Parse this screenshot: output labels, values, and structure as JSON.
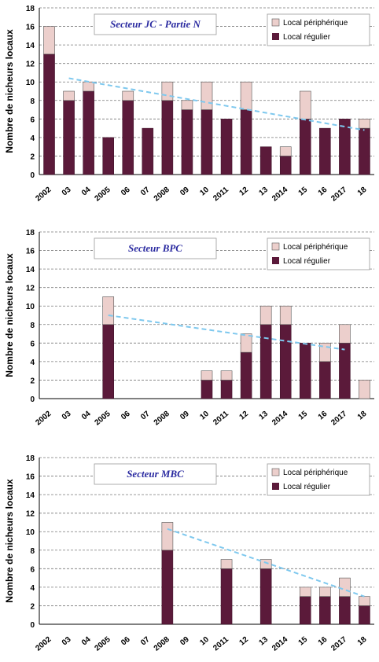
{
  "colors": {
    "regular": "#5b1a3a",
    "peripheral": "#eccfcc",
    "trend": "#7ec8ee",
    "grid": "#777777"
  },
  "chart_data": [
    {
      "type": "bar",
      "title": "Secteur JC  -  Partie N",
      "ylabel": "Nombre de nicheurs locaux",
      "ylim": [
        0,
        18
      ],
      "yticks": [
        0,
        2,
        4,
        6,
        8,
        10,
        12,
        14,
        16,
        18
      ],
      "categories": [
        "2002",
        "03",
        "04",
        "2005",
        "06",
        "07",
        "2008",
        "09",
        "10",
        "2011",
        "12",
        "13",
        "2014",
        "15",
        "16",
        "2017",
        "18"
      ],
      "series": [
        {
          "name": "Local régulier",
          "values": [
            13,
            8,
            9,
            4,
            8,
            5,
            8,
            7,
            7,
            6,
            7,
            3,
            2,
            6,
            5,
            6,
            5
          ]
        },
        {
          "name": "Local périphérique",
          "values": [
            3,
            1,
            1,
            0,
            1,
            0,
            2,
            1,
            3,
            0,
            3,
            0,
            1,
            3,
            0,
            0,
            1
          ]
        }
      ],
      "trend": {
        "x_from": "03",
        "y_from": 10.4,
        "x_to": "18",
        "y_to": 4.8
      },
      "legend_position": "top-right",
      "grid": true
    },
    {
      "type": "bar",
      "title": "Secteur BPC",
      "ylabel": "Nombre de nicheurs locaux",
      "ylim": [
        0,
        18
      ],
      "yticks": [
        0,
        2,
        4,
        6,
        8,
        10,
        12,
        14,
        16,
        18
      ],
      "categories": [
        "2002",
        "03",
        "04",
        "2005",
        "06",
        "07",
        "2008",
        "09",
        "10",
        "2011",
        "12",
        "13",
        "2014",
        "15",
        "16",
        "2017",
        "18"
      ],
      "series": [
        {
          "name": "Local régulier",
          "values": [
            0,
            0,
            0,
            8,
            0,
            0,
            0,
            0,
            2,
            2,
            5,
            8,
            8,
            6,
            4,
            6,
            0
          ]
        },
        {
          "name": "Local périphérique",
          "values": [
            0,
            0,
            0,
            3,
            0,
            0,
            0,
            0,
            1,
            1,
            2,
            2,
            2,
            0,
            2,
            2,
            2
          ]
        }
      ],
      "trend": {
        "x_from": "2005",
        "y_from": 9.0,
        "x_to": "2017",
        "y_to": 5.3
      },
      "legend_position": "top-right",
      "grid": true
    },
    {
      "type": "bar",
      "title": "Secteur MBC",
      "ylabel": "Nombre de nicheurs locaux",
      "ylim": [
        0,
        18
      ],
      "yticks": [
        0,
        2,
        4,
        6,
        8,
        10,
        12,
        14,
        16,
        18
      ],
      "categories": [
        "2002",
        "03",
        "04",
        "2005",
        "06",
        "07",
        "2008",
        "09",
        "10",
        "2011",
        "12",
        "13",
        "2014",
        "15",
        "16",
        "2017",
        "18"
      ],
      "series": [
        {
          "name": "Local régulier",
          "values": [
            0,
            0,
            0,
            0,
            0,
            0,
            8,
            0,
            0,
            6,
            0,
            6,
            0,
            3,
            3,
            3,
            2
          ]
        },
        {
          "name": "Local périphérique",
          "values": [
            0,
            0,
            0,
            0,
            0,
            0,
            3,
            0,
            0,
            1,
            0,
            1,
            0,
            1,
            1,
            2,
            1
          ]
        }
      ],
      "trend": {
        "x_from": "2008",
        "y_from": 10.3,
        "x_to": "18",
        "y_to": 3.0
      },
      "legend_position": "top-right",
      "grid": true
    }
  ]
}
